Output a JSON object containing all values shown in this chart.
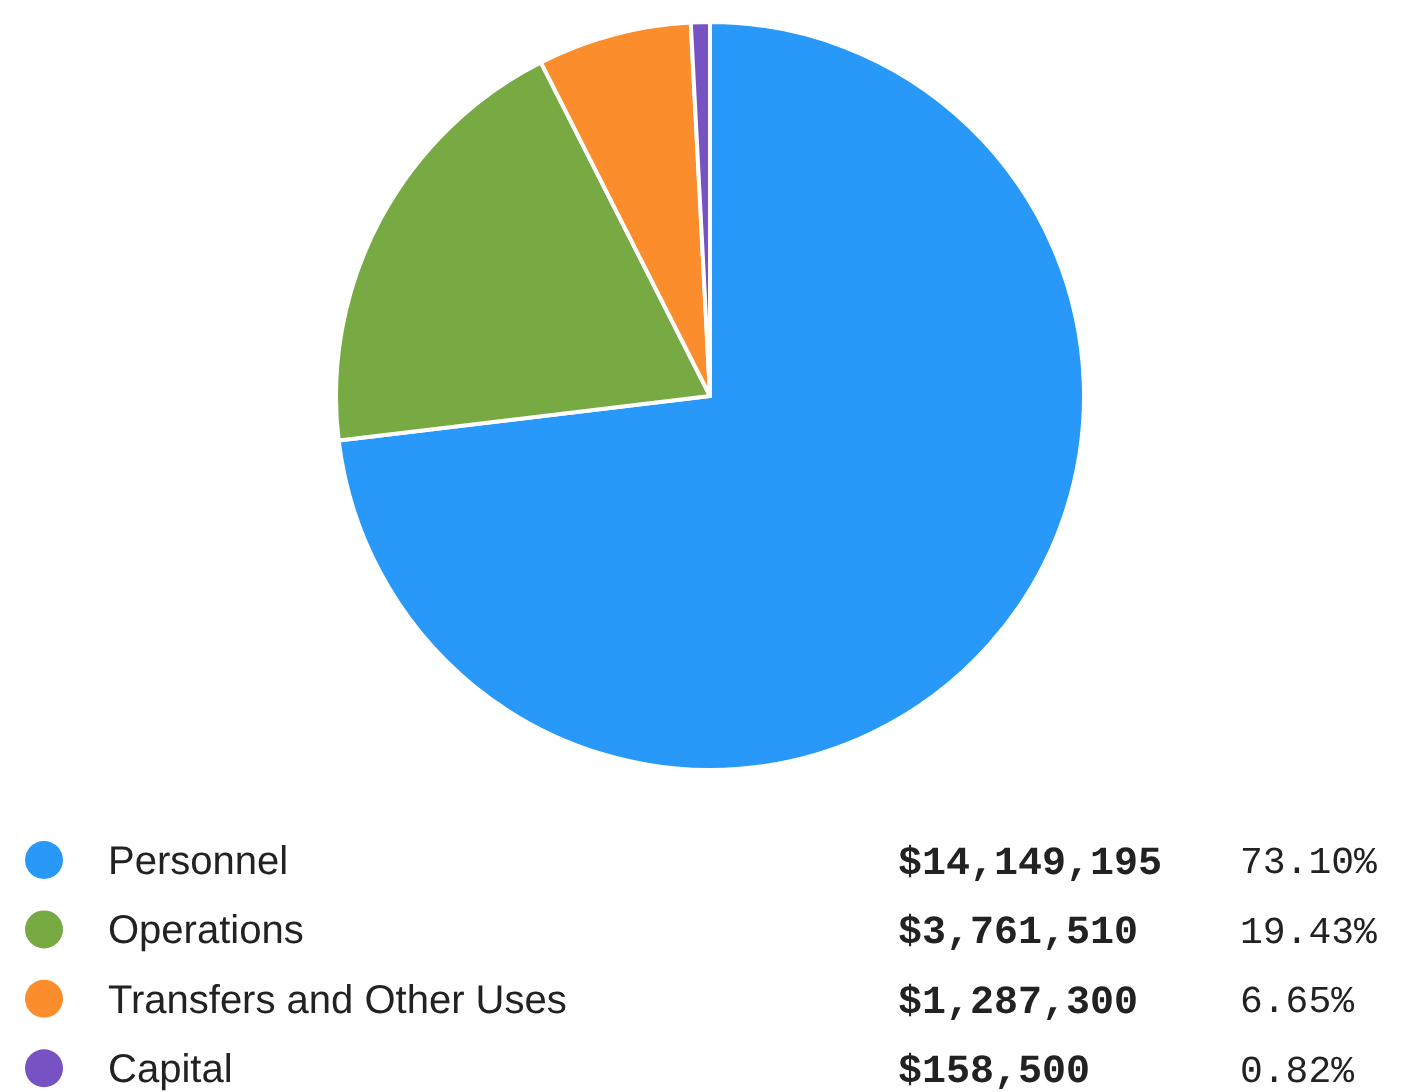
{
  "chart_data": {
    "type": "pie",
    "categories": [
      "Personnel",
      "Operations",
      "Transfers and Other Uses",
      "Capital"
    ],
    "values": [
      14149195,
      3761510,
      1287300,
      158500
    ],
    "colors": [
      "#2899f9",
      "#77aa43",
      "#fb8d2c",
      "#7752c2"
    ],
    "value_labels": [
      "$14,149,195",
      "$3,761,510",
      "$1,287,300",
      "$158,500"
    ],
    "annotations": [
      "73.10%",
      "19.43%",
      "6.65%",
      "0.82%"
    ],
    "legend": "bottom"
  }
}
